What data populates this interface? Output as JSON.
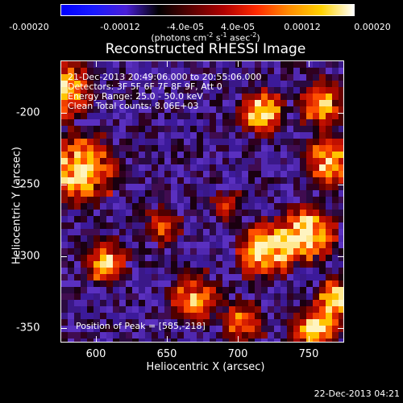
{
  "colorbar": {
    "tick_labels": [
      "-0.00020",
      "-0.00012",
      "-4.0e-05",
      "4.0e-05",
      "0.00012",
      "0.00020"
    ],
    "units_prefix": "(photons cm",
    "units_exp1": "-2",
    "units_mid": " s",
    "units_exp2": "-1",
    "units_mid2": " asec",
    "units_exp3": "-2",
    "units_suffix": ")",
    "stops": [
      "#0000ff",
      "#1a1aff",
      "#4a1fd6",
      "#000000",
      "#5a0000",
      "#b00000",
      "#ff2a00",
      "#ff8c00",
      "#ffd200",
      "#ffffff"
    ]
  },
  "title": "Reconstructed RHESSI Image",
  "info": {
    "line1": "21-Dec-2013 20:49:06.000 to 20:55:06.000",
    "line2": "Detectors: 3F 5F 6F 7F 8F 9F, Att 0",
    "line3": "Energy Range: 25.0 - 50.0 keV",
    "line4": "Clean    Total counts: 8.06E+03"
  },
  "peak": "Position of Peak = [585,-218]",
  "axes": {
    "xlabel": "Heliocentric X (arcsec)",
    "ylabel": "Heliocentric Y (arcsec)",
    "xticks": [
      "600",
      "650",
      "700",
      "750"
    ],
    "yticks": [
      "-200",
      "-250",
      "-300",
      "-350"
    ],
    "xrange": [
      580,
      770
    ],
    "yrange": [
      -360,
      -162
    ]
  },
  "timestamp": "22-Dec-2013 04:21"
}
